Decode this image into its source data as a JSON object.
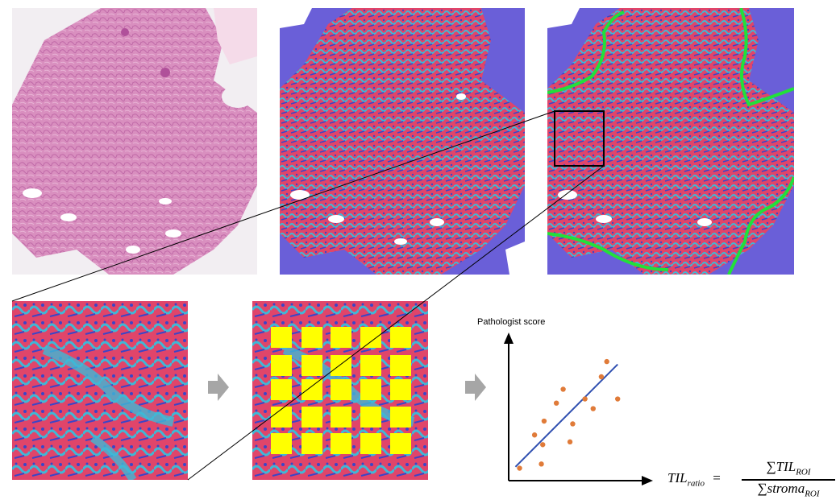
{
  "figure": {
    "panels": [
      {
        "id": "he-slide",
        "description_shown": false
      },
      {
        "id": "segmentation-map"
      },
      {
        "id": "segmentation-with-boundary"
      },
      {
        "id": "roi-zoom"
      },
      {
        "id": "roi-tiles"
      }
    ],
    "colors": {
      "he_pink": "#d98fbf",
      "he_dark": "#b0509a",
      "background_purple": "#6a5fd8",
      "tumor_red": "#e0456a",
      "stroma_cyan": "#3fb8d6",
      "til_blue": "#3a45c8",
      "boundary_green": "#22e03a",
      "tile_yellow": "#ffff00",
      "scatter_point": "#e07b39",
      "regression_line": "#2f4fb0",
      "process_arrow": "#a6a6a6"
    },
    "scatter": {
      "y_axis_label": "Pathologist score"
    },
    "formula": {
      "lhs_base": "TIL",
      "lhs_sub": "ratio",
      "equals": "=",
      "num_sigma": "∑",
      "num_base": "TIL",
      "num_sub": "ROI",
      "den_sigma": "∑",
      "den_base": "stroma",
      "den_sub": "ROI"
    }
  },
  "chart_data": {
    "type": "scatter",
    "title": "",
    "xlabel": "",
    "ylabel": "Pathologist score",
    "xlim": [
      0,
      10
    ],
    "ylim": [
      0,
      10
    ],
    "grid": false,
    "points": [
      {
        "x": 0.8,
        "y": 0.9
      },
      {
        "x": 1.9,
        "y": 3.3
      },
      {
        "x": 2.4,
        "y": 1.2
      },
      {
        "x": 2.5,
        "y": 2.6
      },
      {
        "x": 2.6,
        "y": 4.3
      },
      {
        "x": 3.5,
        "y": 5.6
      },
      {
        "x": 4.0,
        "y": 6.6
      },
      {
        "x": 4.5,
        "y": 2.8
      },
      {
        "x": 4.7,
        "y": 4.1
      },
      {
        "x": 5.6,
        "y": 5.9
      },
      {
        "x": 6.2,
        "y": 5.2
      },
      {
        "x": 6.8,
        "y": 7.5
      },
      {
        "x": 7.2,
        "y": 8.6
      },
      {
        "x": 8.0,
        "y": 5.9
      }
    ],
    "trendline": {
      "x": [
        0.5,
        8.0
      ],
      "y": [
        1.0,
        8.4
      ]
    }
  }
}
